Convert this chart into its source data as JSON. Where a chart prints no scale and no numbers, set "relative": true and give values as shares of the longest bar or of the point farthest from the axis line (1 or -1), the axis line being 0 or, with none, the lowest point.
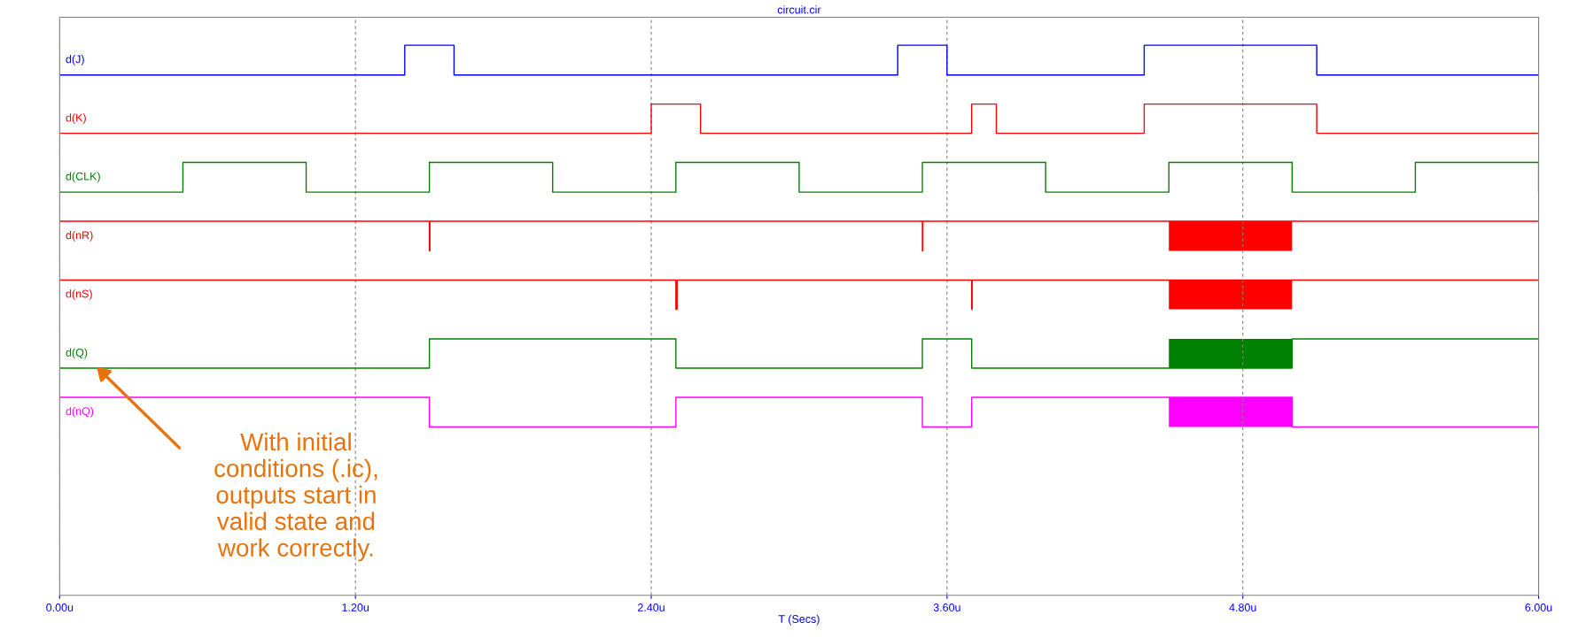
{
  "chart_data": {
    "type": "step",
    "title": "circuit.cir",
    "xlabel": "T (Secs)",
    "relative": true,
    "xlim": [
      0,
      6.0
    ],
    "xticks": [
      {
        "value": 0,
        "label": "0.00u"
      },
      {
        "value": 1.2,
        "label": "1.20u"
      },
      {
        "value": 2.4,
        "label": "2.40u"
      },
      {
        "value": 3.6,
        "label": "3.60u"
      },
      {
        "value": 4.8,
        "label": "4.80u"
      },
      {
        "value": 6.0,
        "label": "6.00u"
      }
    ],
    "tick_labels": "x",
    "grid": "x",
    "legend": false,
    "series": [
      {
        "name": "d(J)",
        "color": "#0000ff",
        "x": [
          0,
          1.4,
          1.6,
          3.4,
          3.6,
          4.4,
          5.1,
          6.0
        ],
        "values": [
          0.946,
          1.0,
          0.946,
          1.0,
          0.946,
          1.0,
          0.946,
          0.946
        ]
      },
      {
        "name": "d(K)",
        "color": "#ff0000",
        "x": [
          0,
          2.4,
          2.6,
          3.7,
          3.8,
          4.4,
          5.1,
          6.0
        ],
        "values": [
          0.84,
          0.893,
          0.84,
          0.893,
          0.84,
          0.893,
          0.84,
          0.84
        ]
      },
      {
        "name": "d(CLK)",
        "color": "#008000",
        "x": [
          0,
          0.5,
          1.0,
          1.5,
          2.0,
          2.5,
          3.0,
          3.5,
          4.0,
          4.5,
          5.0,
          5.5,
          6.0
        ],
        "values": [
          0.733,
          0.787,
          0.733,
          0.787,
          0.733,
          0.787,
          0.733,
          0.787,
          0.733,
          0.787,
          0.733,
          0.787,
          0.733
        ]
      },
      {
        "name": "d(nR)",
        "color": "#ff0000",
        "x": [
          0,
          1.5,
          1.502,
          3.5,
          3.502,
          4.5,
          5.0,
          6.0
        ],
        "values": [
          0.68,
          0.626,
          0.68,
          0.626,
          0.68,
          0.68,
          0.68,
          0.68
        ],
        "lower": [
          null,
          null,
          null,
          null,
          null,
          0.626,
          0.626,
          null
        ],
        "upper": [
          null,
          null,
          null,
          null,
          null,
          0.68,
          0.68,
          null
        ]
      },
      {
        "name": "d(nS)",
        "color": "#fe0000",
        "x": [
          0,
          2.5,
          2.505,
          3.7,
          3.702,
          4.5,
          5.0,
          6.0
        ],
        "values": [
          0.573,
          0.52,
          0.573,
          0.52,
          0.573,
          0.573,
          0.573,
          0.573
        ],
        "lower": [
          null,
          null,
          null,
          null,
          null,
          0.52,
          0.52,
          null
        ],
        "upper": [
          null,
          null,
          null,
          null,
          null,
          0.573,
          0.573,
          null
        ]
      },
      {
        "name": "d(Q)",
        "color": "#008000",
        "x": [
          0,
          1.5,
          2.5,
          3.5,
          3.7,
          4.5,
          5.0,
          6.0
        ],
        "values": [
          0.413,
          0.466,
          0.413,
          0.466,
          0.413,
          0.413,
          0.466,
          0.466
        ],
        "lower": [
          null,
          null,
          null,
          null,
          null,
          0.413,
          0.413,
          null
        ],
        "upper": [
          null,
          null,
          null,
          null,
          null,
          0.466,
          0.466,
          null
        ]
      },
      {
        "name": "d(nQ)",
        "color": "#ff00ff",
        "x": [
          0,
          1.5,
          2.5,
          3.5,
          3.7,
          4.5,
          5.0,
          6.0
        ],
        "values": [
          0.36,
          0.306,
          0.36,
          0.306,
          0.36,
          0.36,
          0.306,
          0.306
        ],
        "lower": [
          null,
          null,
          null,
          null,
          null,
          0.306,
          0.306,
          null
        ],
        "upper": [
          null,
          null,
          null,
          null,
          null,
          0.36,
          0.36,
          null
        ]
      }
    ],
    "annotations": [
      "With initial\nconditions (.ic),\noutputs start in\nvalid state and\nwork correctly."
    ]
  }
}
